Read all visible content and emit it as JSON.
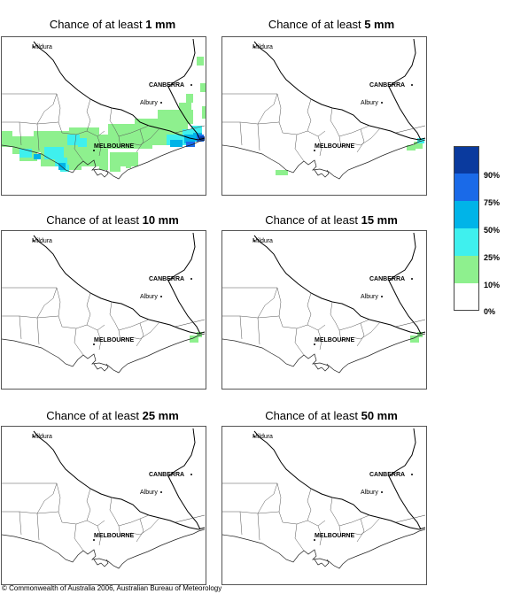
{
  "panels": [
    {
      "prefix": "Chance of at least ",
      "amount": "1 mm"
    },
    {
      "prefix": "Chance of at least ",
      "amount": "5 mm"
    },
    {
      "prefix": "Chance of at least ",
      "amount": "10 mm"
    },
    {
      "prefix": "Chance of at least ",
      "amount": "15 mm"
    },
    {
      "prefix": "Chance of at least ",
      "amount": "25 mm"
    },
    {
      "prefix": "Chance of at least ",
      "amount": "50 mm"
    }
  ],
  "places": {
    "mildura": "Mildura",
    "canberra": "CANBERRA",
    "albury": "Albury",
    "melbourne": "MELBOURNE"
  },
  "legend": {
    "labels": [
      "90%",
      "75%",
      "50%",
      "25%",
      "10%",
      "0%"
    ],
    "colors": [
      "#0a3a9e",
      "#1a6ae8",
      "#00b4e8",
      "#3ff0ee",
      "#8ef08e",
      "#ffffff"
    ]
  },
  "copyright": "© Commonwealth of Australia 2006, Australian Bureau of Meteorology"
}
